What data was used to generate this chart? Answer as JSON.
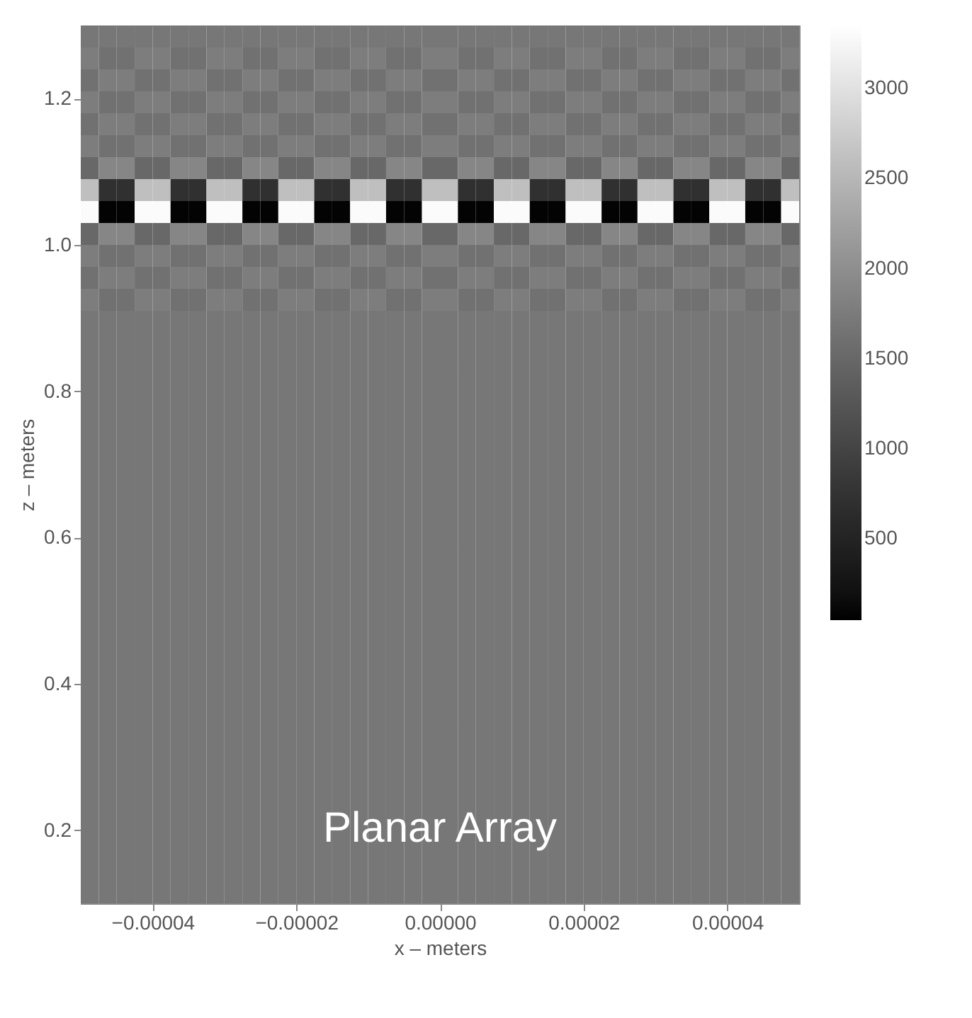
{
  "chart_data": {
    "type": "heatmap",
    "xlabel": "x – meters",
    "ylabel": "z – meters",
    "annotations": [
      "Planar Array"
    ],
    "xlim": [
      -5e-05,
      5e-05
    ],
    "xticks": [
      {
        "value": -4e-05,
        "label": "−0.00004"
      },
      {
        "value": -2e-05,
        "label": "−0.00002"
      },
      {
        "value": 0,
        "label": "0.00000"
      },
      {
        "value": 2e-05,
        "label": "0.00002"
      },
      {
        "value": 4e-05,
        "label": "0.00004"
      }
    ],
    "ylim": [
      0.1,
      1.3
    ],
    "yticks": [
      0.2,
      0.4,
      0.6,
      0.8,
      {
        "value": 1,
        "label": "1.0"
      },
      1.2
    ],
    "clim": [
      50,
      3350
    ],
    "cticks": [
      500,
      1000,
      1500,
      2000,
      2500,
      3000
    ],
    "grid": false,
    "x": [
      -4.875e-05,
      -4.625e-05,
      -4.375e-05,
      -4.125e-05,
      -3.875e-05,
      -3.625e-05,
      -3.375e-05,
      -3.125e-05,
      -2.875e-05,
      -2.625e-05,
      -2.375e-05,
      -2.125e-05,
      -1.875e-05,
      -1.625e-05,
      -1.375e-05,
      -1.125e-05,
      -8.75e-06,
      -6.25e-06,
      -3.75e-06,
      -1.25e-06,
      1.25e-06,
      3.75e-06,
      6.25e-06,
      8.75e-06,
      1.125e-05,
      1.375e-05,
      1.625e-05,
      1.875e-05,
      2.125e-05,
      2.375e-05,
      2.625e-05,
      2.875e-05,
      3.125e-05,
      3.375e-05,
      3.625e-05,
      3.875e-05,
      4.125e-05,
      4.375e-05,
      4.625e-05,
      4.875e-05
    ],
    "y": [
      1.285,
      1.255,
      1.225,
      1.195,
      1.165,
      1.135,
      1.105,
      1.075,
      1.045,
      1.015,
      0.985,
      0.955,
      0.925,
      0.895,
      0.865,
      0.835,
      0.805,
      0.775,
      0.745,
      0.715,
      0.685,
      0.655,
      0.625,
      0.595,
      0.565,
      0.535,
      0.505,
      0.475,
      0.445,
      0.415,
      0.385,
      0.355,
      0.325,
      0.295,
      0.265,
      0.235,
      0.205,
      0.175,
      0.145,
      0.115
    ],
    "cells": [
      [
        1700,
        1700,
        1700,
        1700,
        1700,
        1700,
        1700,
        1700,
        1700,
        1700,
        1700,
        1700,
        1700,
        1700,
        1700,
        1700,
        1700,
        1700,
        1700,
        1700,
        1700,
        1700,
        1700,
        1700,
        1700,
        1700,
        1700,
        1700,
        1700,
        1700,
        1700,
        1700,
        1700,
        1700,
        1700,
        1700,
        1700,
        1700,
        1700,
        1700
      ],
      [
        1780,
        1620,
        1620,
        1780,
        1780,
        1620,
        1620,
        1780,
        1780,
        1620,
        1620,
        1780,
        1780,
        1620,
        1620,
        1780,
        1780,
        1620,
        1620,
        1780,
        1780,
        1620,
        1620,
        1780,
        1780,
        1620,
        1620,
        1780,
        1780,
        1620,
        1620,
        1780,
        1780,
        1620,
        1620,
        1780,
        1780,
        1620,
        1620,
        1780
      ],
      [
        1620,
        1780,
        1780,
        1620,
        1620,
        1780,
        1780,
        1620,
        1620,
        1780,
        1780,
        1620,
        1620,
        1780,
        1780,
        1620,
        1620,
        1780,
        1780,
        1620,
        1620,
        1780,
        1780,
        1620,
        1620,
        1780,
        1780,
        1620,
        1620,
        1780,
        1780,
        1620,
        1620,
        1780,
        1780,
        1620,
        1620,
        1780,
        1780,
        1620
      ],
      [
        1780,
        1620,
        1620,
        1780,
        1780,
        1620,
        1620,
        1780,
        1780,
        1620,
        1620,
        1780,
        1780,
        1620,
        1620,
        1780,
        1780,
        1620,
        1620,
        1780,
        1780,
        1620,
        1620,
        1780,
        1780,
        1620,
        1620,
        1780,
        1780,
        1620,
        1620,
        1780,
        1780,
        1620,
        1620,
        1780,
        1780,
        1620,
        1620,
        1780
      ],
      [
        1620,
        1780,
        1780,
        1620,
        1620,
        1780,
        1780,
        1620,
        1620,
        1780,
        1780,
        1620,
        1620,
        1780,
        1780,
        1620,
        1620,
        1780,
        1780,
        1620,
        1620,
        1780,
        1780,
        1620,
        1620,
        1780,
        1780,
        1620,
        1620,
        1780,
        1780,
        1620,
        1620,
        1780,
        1780,
        1620,
        1620,
        1780,
        1780,
        1620
      ],
      [
        1780,
        1620,
        1620,
        1780,
        1780,
        1620,
        1620,
        1780,
        1780,
        1620,
        1620,
        1780,
        1780,
        1620,
        1620,
        1780,
        1780,
        1620,
        1620,
        1780,
        1780,
        1620,
        1620,
        1780,
        1780,
        1620,
        1620,
        1780,
        1780,
        1620,
        1620,
        1780,
        1780,
        1620,
        1620,
        1780,
        1780,
        1620,
        1620,
        1780
      ],
      [
        1500,
        1900,
        1900,
        1500,
        1500,
        1900,
        1900,
        1500,
        1500,
        1900,
        1900,
        1500,
        1500,
        1900,
        1900,
        1500,
        1500,
        1900,
        1900,
        1500,
        1500,
        1900,
        1900,
        1500,
        1500,
        1900,
        1900,
        1500,
        1500,
        1900,
        1900,
        1500,
        1500,
        1900,
        1900,
        1500,
        1500,
        1900,
        1900,
        1500
      ],
      [
        2600,
        700,
        700,
        2600,
        2600,
        700,
        700,
        2600,
        2600,
        700,
        700,
        2600,
        2600,
        700,
        700,
        2600,
        2600,
        700,
        700,
        2600,
        2600,
        700,
        700,
        2600,
        2600,
        700,
        700,
        2600,
        2600,
        700,
        700,
        2600,
        2600,
        700,
        700,
        2600,
        2600,
        700,
        700,
        2600
      ],
      [
        3300,
        80,
        80,
        3300,
        3300,
        80,
        80,
        3300,
        3300,
        80,
        80,
        3300,
        3300,
        80,
        80,
        3300,
        3300,
        80,
        80,
        3300,
        3300,
        80,
        80,
        3300,
        3300,
        80,
        80,
        3300,
        3300,
        80,
        80,
        3300,
        3300,
        80,
        80,
        3300,
        3300,
        80,
        80,
        3300
      ],
      [
        1500,
        1900,
        1900,
        1500,
        1500,
        1900,
        1900,
        1500,
        1500,
        1900,
        1900,
        1500,
        1500,
        1900,
        1900,
        1500,
        1500,
        1900,
        1900,
        1500,
        1500,
        1900,
        1900,
        1500,
        1500,
        1900,
        1900,
        1500,
        1500,
        1900,
        1900,
        1500,
        1500,
        1900,
        1900,
        1500,
        1500,
        1900,
        1900,
        1500
      ],
      [
        1780,
        1620,
        1620,
        1780,
        1780,
        1620,
        1620,
        1780,
        1780,
        1620,
        1620,
        1780,
        1780,
        1620,
        1620,
        1780,
        1780,
        1620,
        1620,
        1780,
        1780,
        1620,
        1620,
        1780,
        1780,
        1620,
        1620,
        1780,
        1780,
        1620,
        1620,
        1780,
        1780,
        1620,
        1620,
        1780,
        1780,
        1620,
        1620,
        1780
      ],
      [
        1620,
        1780,
        1780,
        1620,
        1620,
        1780,
        1780,
        1620,
        1620,
        1780,
        1780,
        1620,
        1620,
        1780,
        1780,
        1620,
        1620,
        1780,
        1780,
        1620,
        1620,
        1780,
        1780,
        1620,
        1620,
        1780,
        1780,
        1620,
        1620,
        1780,
        1780,
        1620,
        1620,
        1780,
        1780,
        1620,
        1620,
        1780,
        1780,
        1620
      ],
      [
        1780,
        1620,
        1620,
        1780,
        1780,
        1620,
        1620,
        1780,
        1780,
        1620,
        1620,
        1780,
        1780,
        1620,
        1620,
        1780,
        1780,
        1620,
        1620,
        1780,
        1780,
        1620,
        1620,
        1780,
        1780,
        1620,
        1620,
        1780,
        1780,
        1620,
        1620,
        1780,
        1780,
        1620,
        1620,
        1780,
        1780,
        1620,
        1620,
        1780
      ],
      [
        1700,
        1700,
        1700,
        1700,
        1700,
        1700,
        1700,
        1700,
        1700,
        1700,
        1700,
        1700,
        1700,
        1700,
        1700,
        1700,
        1700,
        1700,
        1700,
        1700,
        1700,
        1700,
        1700,
        1700,
        1700,
        1700,
        1700,
        1700,
        1700,
        1700,
        1700,
        1700,
        1700,
        1700,
        1700,
        1700,
        1700,
        1700,
        1700,
        1700
      ],
      [
        1700,
        1700,
        1700,
        1700,
        1700,
        1700,
        1700,
        1700,
        1700,
        1700,
        1700,
        1700,
        1700,
        1700,
        1700,
        1700,
        1700,
        1700,
        1700,
        1700,
        1700,
        1700,
        1700,
        1700,
        1700,
        1700,
        1700,
        1700,
        1700,
        1700,
        1700,
        1700,
        1700,
        1700,
        1700,
        1700,
        1700,
        1700,
        1700,
        1700
      ],
      [
        1700,
        1700,
        1700,
        1700,
        1700,
        1700,
        1700,
        1700,
        1700,
        1700,
        1700,
        1700,
        1700,
        1700,
        1700,
        1700,
        1700,
        1700,
        1700,
        1700,
        1700,
        1700,
        1700,
        1700,
        1700,
        1700,
        1700,
        1700,
        1700,
        1700,
        1700,
        1700,
        1700,
        1700,
        1700,
        1700,
        1700,
        1700,
        1700,
        1700
      ],
      [
        1700,
        1700,
        1700,
        1700,
        1700,
        1700,
        1700,
        1700,
        1700,
        1700,
        1700,
        1700,
        1700,
        1700,
        1700,
        1700,
        1700,
        1700,
        1700,
        1700,
        1700,
        1700,
        1700,
        1700,
        1700,
        1700,
        1700,
        1700,
        1700,
        1700,
        1700,
        1700,
        1700,
        1700,
        1700,
        1700,
        1700,
        1700,
        1700,
        1700
      ],
      [
        1700,
        1700,
        1700,
        1700,
        1700,
        1700,
        1700,
        1700,
        1700,
        1700,
        1700,
        1700,
        1700,
        1700,
        1700,
        1700,
        1700,
        1700,
        1700,
        1700,
        1700,
        1700,
        1700,
        1700,
        1700,
        1700,
        1700,
        1700,
        1700,
        1700,
        1700,
        1700,
        1700,
        1700,
        1700,
        1700,
        1700,
        1700,
        1700,
        1700
      ],
      [
        1700,
        1700,
        1700,
        1700,
        1700,
        1700,
        1700,
        1700,
        1700,
        1700,
        1700,
        1700,
        1700,
        1700,
        1700,
        1700,
        1700,
        1700,
        1700,
        1700,
        1700,
        1700,
        1700,
        1700,
        1700,
        1700,
        1700,
        1700,
        1700,
        1700,
        1700,
        1700,
        1700,
        1700,
        1700,
        1700,
        1700,
        1700,
        1700,
        1700
      ],
      [
        1700,
        1700,
        1700,
        1700,
        1700,
        1700,
        1700,
        1700,
        1700,
        1700,
        1700,
        1700,
        1700,
        1700,
        1700,
        1700,
        1700,
        1700,
        1700,
        1700,
        1700,
        1700,
        1700,
        1700,
        1700,
        1700,
        1700,
        1700,
        1700,
        1700,
        1700,
        1700,
        1700,
        1700,
        1700,
        1700,
        1700,
        1700,
        1700,
        1700
      ],
      [
        1700,
        1700,
        1700,
        1700,
        1700,
        1700,
        1700,
        1700,
        1700,
        1700,
        1700,
        1700,
        1700,
        1700,
        1700,
        1700,
        1700,
        1700,
        1700,
        1700,
        1700,
        1700,
        1700,
        1700,
        1700,
        1700,
        1700,
        1700,
        1700,
        1700,
        1700,
        1700,
        1700,
        1700,
        1700,
        1700,
        1700,
        1700,
        1700,
        1700
      ],
      [
        1700,
        1700,
        1700,
        1700,
        1700,
        1700,
        1700,
        1700,
        1700,
        1700,
        1700,
        1700,
        1700,
        1700,
        1700,
        1700,
        1700,
        1700,
        1700,
        1700,
        1700,
        1700,
        1700,
        1700,
        1700,
        1700,
        1700,
        1700,
        1700,
        1700,
        1700,
        1700,
        1700,
        1700,
        1700,
        1700,
        1700,
        1700,
        1700,
        1700
      ],
      [
        1700,
        1700,
        1700,
        1700,
        1700,
        1700,
        1700,
        1700,
        1700,
        1700,
        1700,
        1700,
        1700,
        1700,
        1700,
        1700,
        1700,
        1700,
        1700,
        1700,
        1700,
        1700,
        1700,
        1700,
        1700,
        1700,
        1700,
        1700,
        1700,
        1700,
        1700,
        1700,
        1700,
        1700,
        1700,
        1700,
        1700,
        1700,
        1700,
        1700
      ],
      [
        1700,
        1700,
        1700,
        1700,
        1700,
        1700,
        1700,
        1700,
        1700,
        1700,
        1700,
        1700,
        1700,
        1700,
        1700,
        1700,
        1700,
        1700,
        1700,
        1700,
        1700,
        1700,
        1700,
        1700,
        1700,
        1700,
        1700,
        1700,
        1700,
        1700,
        1700,
        1700,
        1700,
        1700,
        1700,
        1700,
        1700,
        1700,
        1700,
        1700
      ],
      [
        1700,
        1700,
        1700,
        1700,
        1700,
        1700,
        1700,
        1700,
        1700,
        1700,
        1700,
        1700,
        1700,
        1700,
        1700,
        1700,
        1700,
        1700,
        1700,
        1700,
        1700,
        1700,
        1700,
        1700,
        1700,
        1700,
        1700,
        1700,
        1700,
        1700,
        1700,
        1700,
        1700,
        1700,
        1700,
        1700,
        1700,
        1700,
        1700,
        1700
      ],
      [
        1700,
        1700,
        1700,
        1700,
        1700,
        1700,
        1700,
        1700,
        1700,
        1700,
        1700,
        1700,
        1700,
        1700,
        1700,
        1700,
        1700,
        1700,
        1700,
        1700,
        1700,
        1700,
        1700,
        1700,
        1700,
        1700,
        1700,
        1700,
        1700,
        1700,
        1700,
        1700,
        1700,
        1700,
        1700,
        1700,
        1700,
        1700,
        1700,
        1700
      ],
      [
        1700,
        1700,
        1700,
        1700,
        1700,
        1700,
        1700,
        1700,
        1700,
        1700,
        1700,
        1700,
        1700,
        1700,
        1700,
        1700,
        1700,
        1700,
        1700,
        1700,
        1700,
        1700,
        1700,
        1700,
        1700,
        1700,
        1700,
        1700,
        1700,
        1700,
        1700,
        1700,
        1700,
        1700,
        1700,
        1700,
        1700,
        1700,
        1700,
        1700
      ],
      [
        1700,
        1700,
        1700,
        1700,
        1700,
        1700,
        1700,
        1700,
        1700,
        1700,
        1700,
        1700,
        1700,
        1700,
        1700,
        1700,
        1700,
        1700,
        1700,
        1700,
        1700,
        1700,
        1700,
        1700,
        1700,
        1700,
        1700,
        1700,
        1700,
        1700,
        1700,
        1700,
        1700,
        1700,
        1700,
        1700,
        1700,
        1700,
        1700,
        1700
      ],
      [
        1700,
        1700,
        1700,
        1700,
        1700,
        1700,
        1700,
        1700,
        1700,
        1700,
        1700,
        1700,
        1700,
        1700,
        1700,
        1700,
        1700,
        1700,
        1700,
        1700,
        1700,
        1700,
        1700,
        1700,
        1700,
        1700,
        1700,
        1700,
        1700,
        1700,
        1700,
        1700,
        1700,
        1700,
        1700,
        1700,
        1700,
        1700,
        1700,
        1700
      ],
      [
        1700,
        1700,
        1700,
        1700,
        1700,
        1700,
        1700,
        1700,
        1700,
        1700,
        1700,
        1700,
        1700,
        1700,
        1700,
        1700,
        1700,
        1700,
        1700,
        1700,
        1700,
        1700,
        1700,
        1700,
        1700,
        1700,
        1700,
        1700,
        1700,
        1700,
        1700,
        1700,
        1700,
        1700,
        1700,
        1700,
        1700,
        1700,
        1700,
        1700
      ],
      [
        1700,
        1700,
        1700,
        1700,
        1700,
        1700,
        1700,
        1700,
        1700,
        1700,
        1700,
        1700,
        1700,
        1700,
        1700,
        1700,
        1700,
        1700,
        1700,
        1700,
        1700,
        1700,
        1700,
        1700,
        1700,
        1700,
        1700,
        1700,
        1700,
        1700,
        1700,
        1700,
        1700,
        1700,
        1700,
        1700,
        1700,
        1700,
        1700,
        1700
      ],
      [
        1700,
        1700,
        1700,
        1700,
        1700,
        1700,
        1700,
        1700,
        1700,
        1700,
        1700,
        1700,
        1700,
        1700,
        1700,
        1700,
        1700,
        1700,
        1700,
        1700,
        1700,
        1700,
        1700,
        1700,
        1700,
        1700,
        1700,
        1700,
        1700,
        1700,
        1700,
        1700,
        1700,
        1700,
        1700,
        1700,
        1700,
        1700,
        1700,
        1700
      ],
      [
        1700,
        1700,
        1700,
        1700,
        1700,
        1700,
        1700,
        1700,
        1700,
        1700,
        1700,
        1700,
        1700,
        1700,
        1700,
        1700,
        1700,
        1700,
        1700,
        1700,
        1700,
        1700,
        1700,
        1700,
        1700,
        1700,
        1700,
        1700,
        1700,
        1700,
        1700,
        1700,
        1700,
        1700,
        1700,
        1700,
        1700,
        1700,
        1700,
        1700
      ],
      [
        1700,
        1700,
        1700,
        1700,
        1700,
        1700,
        1700,
        1700,
        1700,
        1700,
        1700,
        1700,
        1700,
        1700,
        1700,
        1700,
        1700,
        1700,
        1700,
        1700,
        1700,
        1700,
        1700,
        1700,
        1700,
        1700,
        1700,
        1700,
        1700,
        1700,
        1700,
        1700,
        1700,
        1700,
        1700,
        1700,
        1700,
        1700,
        1700,
        1700
      ],
      [
        1700,
        1700,
        1700,
        1700,
        1700,
        1700,
        1700,
        1700,
        1700,
        1700,
        1700,
        1700,
        1700,
        1700,
        1700,
        1700,
        1700,
        1700,
        1700,
        1700,
        1700,
        1700,
        1700,
        1700,
        1700,
        1700,
        1700,
        1700,
        1700,
        1700,
        1700,
        1700,
        1700,
        1700,
        1700,
        1700,
        1700,
        1700,
        1700,
        1700
      ],
      [
        1700,
        1700,
        1700,
        1700,
        1700,
        1700,
        1700,
        1700,
        1700,
        1700,
        1700,
        1700,
        1700,
        1700,
        1700,
        1700,
        1700,
        1700,
        1700,
        1700,
        1700,
        1700,
        1700,
        1700,
        1700,
        1700,
        1700,
        1700,
        1700,
        1700,
        1700,
        1700,
        1700,
        1700,
        1700,
        1700,
        1700,
        1700,
        1700,
        1700
      ],
      [
        1700,
        1700,
        1700,
        1700,
        1700,
        1700,
        1700,
        1700,
        1700,
        1700,
        1700,
        1700,
        1700,
        1700,
        1700,
        1700,
        1700,
        1700,
        1700,
        1700,
        1700,
        1700,
        1700,
        1700,
        1700,
        1700,
        1700,
        1700,
        1700,
        1700,
        1700,
        1700,
        1700,
        1700,
        1700,
        1700,
        1700,
        1700,
        1700,
        1700
      ],
      [
        1700,
        1700,
        1700,
        1700,
        1700,
        1700,
        1700,
        1700,
        1700,
        1700,
        1700,
        1700,
        1700,
        1700,
        1700,
        1700,
        1700,
        1700,
        1700,
        1700,
        1700,
        1700,
        1700,
        1700,
        1700,
        1700,
        1700,
        1700,
        1700,
        1700,
        1700,
        1700,
        1700,
        1700,
        1700,
        1700,
        1700,
        1700,
        1700,
        1700
      ],
      [
        1700,
        1700,
        1700,
        1700,
        1700,
        1700,
        1700,
        1700,
        1700,
        1700,
        1700,
        1700,
        1700,
        1700,
        1700,
        1700,
        1700,
        1700,
        1700,
        1700,
        1700,
        1700,
        1700,
        1700,
        1700,
        1700,
        1700,
        1700,
        1700,
        1700,
        1700,
        1700,
        1700,
        1700,
        1700,
        1700,
        1700,
        1700,
        1700,
        1700
      ],
      [
        1700,
        1700,
        1700,
        1700,
        1700,
        1700,
        1700,
        1700,
        1700,
        1700,
        1700,
        1700,
        1700,
        1700,
        1700,
        1700,
        1700,
        1700,
        1700,
        1700,
        1700,
        1700,
        1700,
        1700,
        1700,
        1700,
        1700,
        1700,
        1700,
        1700,
        1700,
        1700,
        1700,
        1700,
        1700,
        1700,
        1700,
        1700,
        1700,
        1700
      ]
    ]
  }
}
